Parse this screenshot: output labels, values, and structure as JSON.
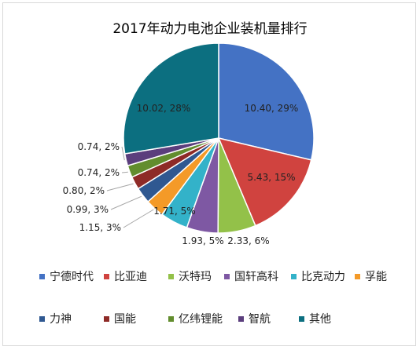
{
  "chart_data": {
    "type": "pie",
    "title": "2017年动力电池企业装机量排行",
    "categories": [
      "宁德时代",
      "比亚迪",
      "沃特玛",
      "国轩高科",
      "比克动力",
      "孚能",
      "力神",
      "国能",
      "亿纬锂能",
      "智航",
      "其他"
    ],
    "values": [
      10.4,
      5.43,
      2.33,
      1.93,
      1.71,
      1.15,
      0.99,
      0.8,
      0.74,
      0.74,
      10.02
    ],
    "data_labels": [
      "10.40, 29%",
      "5.43, 15%",
      "2.33, 6%",
      "1.93, 5%",
      "1.71, 5%",
      "1.15, 3%",
      "0.99, 3%",
      "0.80, 2%",
      "0.74, 2%",
      "0.74, 2%",
      "10.02, 28%"
    ],
    "colors": [
      "#4472c4",
      "#d0433f",
      "#93c149",
      "#7e58a3",
      "#33b2c9",
      "#f49a28",
      "#2f5891",
      "#8e2a27",
      "#628d2e",
      "#5b3e7d",
      "#0c6f80"
    ],
    "legend_position": "bottom"
  }
}
